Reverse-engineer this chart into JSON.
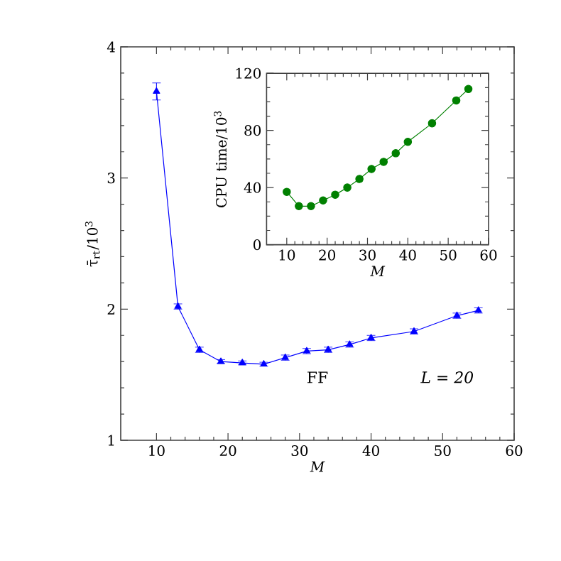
{
  "chart_data": [
    {
      "type": "line",
      "xlabel": "M",
      "ylabel": "τ̄$_{rt}$/10$^{3}$",
      "x": [
        10,
        13,
        16,
        19,
        22,
        25,
        28,
        31,
        34,
        37,
        40,
        46,
        52,
        55
      ],
      "series": [
        {
          "color": "#0000ff",
          "values": [
            3.66,
            2.02,
            1.69,
            1.6,
            1.59,
            1.58,
            1.63,
            1.68,
            1.69,
            1.73,
            1.78,
            1.83,
            1.95,
            1.99
          ],
          "errors": [
            0.065,
            0.02,
            0.02,
            0.015,
            0.015,
            0.015,
            0.02,
            0.02,
            0.02,
            0.02,
            0.02,
            0.02,
            0.02,
            0.02
          ]
        }
      ],
      "xlim": [
        5,
        60
      ],
      "ylim": [
        1,
        4
      ],
      "xticks": [
        10,
        20,
        30,
        40,
        50,
        60
      ],
      "yticks": [
        1,
        2,
        3,
        4
      ],
      "marker": "triangle",
      "annotations": [
        "FF",
        "L = 20"
      ]
    },
    {
      "type": "line",
      "xlabel": "M",
      "ylabel": "CPU time/10$^{3}$",
      "x": [
        10,
        13,
        16,
        19,
        22,
        25,
        28,
        31,
        34,
        37,
        40,
        46,
        52,
        55
      ],
      "series": [
        {
          "color": "#008000",
          "values": [
            37,
            27,
            27,
            31,
            35,
            40,
            46,
            53,
            58,
            64,
            72,
            85,
            101,
            109
          ]
        }
      ],
      "xlim": [
        5,
        60
      ],
      "ylim": [
        0,
        120
      ],
      "xticks": [
        10,
        20,
        30,
        40,
        50,
        60
      ],
      "yticks": [
        0,
        40,
        80,
        120
      ],
      "marker": "circle"
    }
  ]
}
